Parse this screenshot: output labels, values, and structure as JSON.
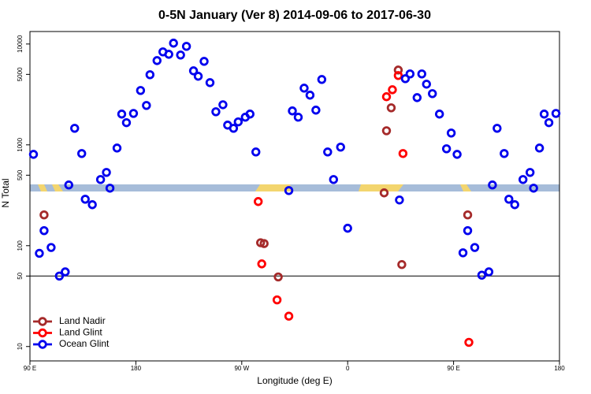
{
  "chart_data": {
    "type": "scatter",
    "title": "0-5N January (Ver 8)   2014-09-06 to 2017-06-30",
    "x_label": "Longitude (deg E)",
    "y_label": "N Total",
    "log_y": true,
    "legend_position": "lower left",
    "xlim": [
      90,
      540
    ],
    "xticks": [
      {
        "value": 90,
        "label": "90 E"
      },
      {
        "value": 180,
        "label": "180"
      },
      {
        "value": 270,
        "label": "90 W"
      },
      {
        "value": 360,
        "label": "0"
      },
      {
        "value": 450,
        "label": "90 E"
      },
      {
        "value": 540,
        "label": "180"
      }
    ],
    "ylim": [
      7.2,
      13300
    ],
    "yticks": [
      10,
      50,
      100,
      500,
      1000,
      5000,
      10000
    ],
    "hline": 50,
    "series": [
      {
        "name": "Land Nadir",
        "color": "#a52a2a",
        "x": [
          102,
          286,
          289,
          301,
          391,
          393,
          397,
          403,
          406,
          462
        ],
        "values": [
          202,
          107,
          105,
          49,
          334,
          1380,
          2330,
          5520,
          65,
          202
        ]
      },
      {
        "name": "Land Glint",
        "color": "#ff0000",
        "x": [
          284,
          287,
          300,
          310,
          393,
          398,
          403,
          407,
          463
        ],
        "values": [
          274,
          66,
          29,
          20,
          3000,
          3520,
          4870,
          820,
          11
        ]
      },
      {
        "name": "Ocean Glint",
        "color": "#0000ee",
        "x": [
          93,
          98,
          102,
          108,
          115,
          120,
          123,
          128,
          134,
          137,
          143,
          150,
          155,
          158,
          164,
          168,
          172,
          178,
          184,
          189,
          192,
          198,
          203,
          208,
          212,
          218,
          223,
          229,
          233,
          238,
          243,
          248,
          254,
          258,
          263,
          267,
          273,
          277,
          282,
          310,
          313,
          318,
          323,
          328,
          333,
          338,
          343,
          348,
          354,
          360,
          404,
          409,
          413,
          419,
          423,
          427,
          432,
          438,
          444,
          448,
          453,
          458,
          462,
          468,
          474,
          480,
          483,
          487,
          493,
          497,
          502,
          509,
          515,
          518,
          523,
          527,
          531,
          537
        ],
        "values": [
          805,
          84,
          141,
          96,
          50,
          55,
          400,
          1460,
          820,
          289,
          255,
          453,
          533,
          372,
          930,
          2020,
          1660,
          2050,
          3460,
          2460,
          4960,
          6850,
          8360,
          7910,
          10200,
          7780,
          9480,
          5420,
          4790,
          6730,
          4140,
          2130,
          2500,
          1570,
          1460,
          1690,
          1880,
          2020,
          850,
          352,
          2170,
          1880,
          3650,
          3110,
          2210,
          4450,
          850,
          453,
          950,
          149,
          284,
          4530,
          5050,
          2940,
          5050,
          4000,
          3220,
          2020,
          914,
          1310,
          805,
          85,
          141,
          96,
          51,
          55,
          400,
          1460,
          820,
          289,
          255,
          453,
          533,
          372,
          930,
          2020,
          1660,
          2050
        ]
      }
    ]
  }
}
